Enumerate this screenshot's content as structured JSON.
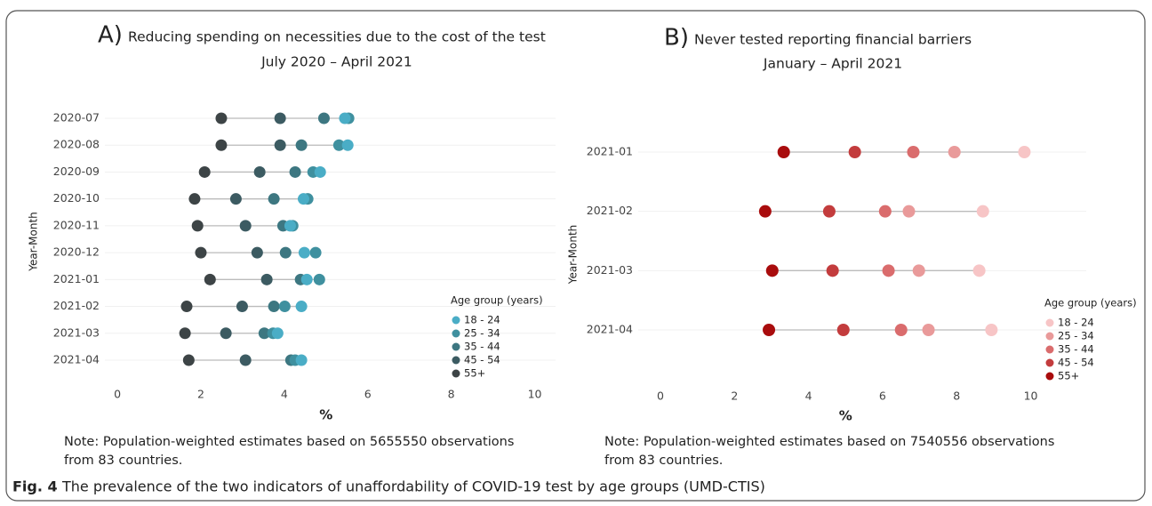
{
  "chart_data": [
    {
      "type": "dot",
      "panel_label": "A)",
      "title": "Reducing spending on necessities due to the cost of the test",
      "subtitle": "July 2020 – April 2021",
      "y_label": "Year-Month",
      "x_label": "%",
      "legend_title": "Age group (years)",
      "note": [
        "Note: Population-weighted estimates based on 5655550 observations",
        "from 83 countries."
      ],
      "categories": [
        "2020-07",
        "2020-08",
        "2020-09",
        "2020-10",
        "2020-11",
        "2020-12",
        "2021-01",
        "2021-02",
        "2021-03",
        "2021-04"
      ],
      "series": [
        {
          "name": "18 - 24",
          "color": "#4aadc6",
          "values": [
            5.45,
            5.52,
            4.86,
            4.46,
            4.14,
            4.48,
            4.54,
            4.41,
            3.84,
            4.41
          ]
        },
        {
          "name": "25 - 34",
          "color": "#3f909f",
          "values": [
            5.54,
            5.31,
            4.69,
            4.56,
            4.2,
            4.75,
            4.84,
            4.01,
            3.73,
            4.26
          ]
        },
        {
          "name": "35 - 44",
          "color": "#3d7781",
          "values": [
            4.95,
            4.41,
            4.26,
            3.75,
            3.97,
            4.03,
            4.39,
            3.75,
            3.52,
            4.16
          ]
        },
        {
          "name": "45 - 54",
          "color": "#3c5b62",
          "values": [
            3.9,
            3.9,
            3.41,
            2.84,
            3.07,
            3.35,
            3.58,
            2.99,
            2.6,
            3.07
          ]
        },
        {
          "name": "55+",
          "color": "#3d4446",
          "values": [
            2.49,
            2.49,
            2.09,
            1.85,
            1.92,
            2.0,
            2.22,
            1.66,
            1.62,
            1.71
          ]
        }
      ],
      "xlim": [
        -0.3,
        10.5
      ],
      "xticks": [
        0,
        2,
        4,
        6,
        8,
        10
      ],
      "grid": true
    },
    {
      "type": "dot",
      "panel_label": "B)",
      "title": "Never tested reporting financial barriers",
      "subtitle": "January – April 2021",
      "y_label": "Year-Month",
      "x_label": "%",
      "legend_title": "Age group (years)",
      "note": [
        "Note: Population-weighted estimates based on 7540556 observations",
        "from 83 countries."
      ],
      "categories": [
        "2021-01",
        "2021-02",
        "2021-03",
        "2021-04"
      ],
      "series": [
        {
          "name": "18 - 24",
          "color": "#f7c5c6",
          "values": [
            9.83,
            8.71,
            8.61,
            8.94
          ]
        },
        {
          "name": "25 - 34",
          "color": "#e99a9a",
          "values": [
            7.94,
            6.71,
            6.98,
            7.24
          ]
        },
        {
          "name": "35 - 44",
          "color": "#da6c6d",
          "values": [
            6.83,
            6.07,
            6.16,
            6.5
          ]
        },
        {
          "name": "45 - 54",
          "color": "#c33c3d",
          "values": [
            5.25,
            4.56,
            4.65,
            4.94
          ]
        },
        {
          "name": "55+",
          "color": "#a90c0d",
          "values": [
            3.33,
            2.83,
            3.02,
            2.93
          ]
        }
      ],
      "xlim": [
        -0.6,
        11.5
      ],
      "xticks": [
        0,
        2,
        4,
        6,
        8,
        10
      ],
      "grid": true
    }
  ],
  "caption": {
    "label": "Fig. 4",
    "text": "The prevalence of the two indicators of unaffordability of COVID-19 test by age groups (UMD-CTIS)"
  }
}
